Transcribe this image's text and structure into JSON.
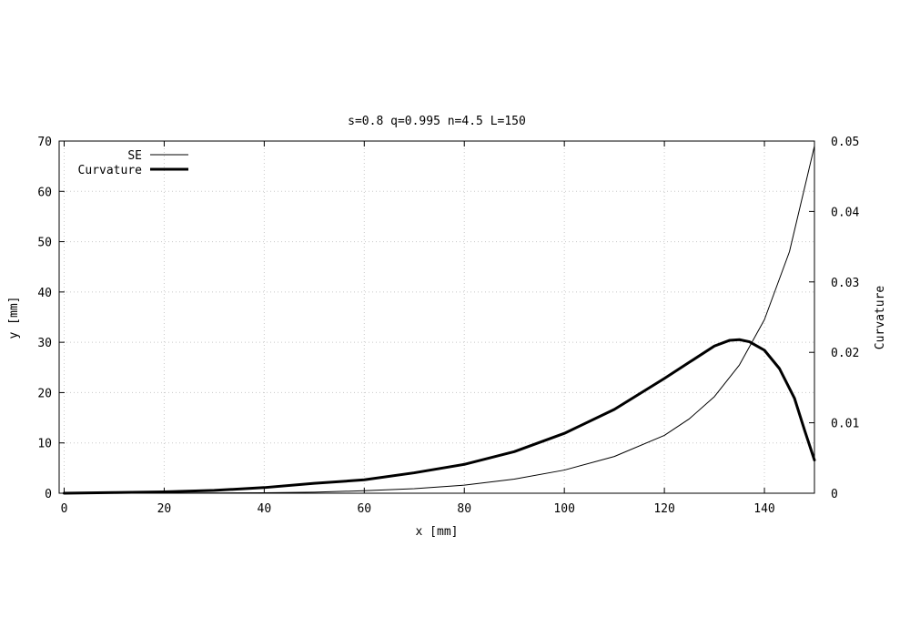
{
  "chart_data": {
    "type": "line",
    "title": "s=0.8 q=0.995 n=4.5 L=150",
    "xlabel": "x [mm]",
    "ylabel": "y [mm]",
    "y2label": "Curvature",
    "xlim": [
      -1,
      150
    ],
    "ylim": [
      0,
      70
    ],
    "y2lim": [
      0,
      0.05
    ],
    "xticks": [
      0,
      20,
      40,
      60,
      80,
      100,
      120,
      140
    ],
    "yticks": [
      0,
      10,
      20,
      30,
      40,
      50,
      60,
      70
    ],
    "y2ticks": [
      0,
      0.01,
      0.02,
      0.03,
      0.04,
      0.05
    ],
    "xtick_labels": [
      "0",
      "20",
      "40",
      "60",
      "80",
      "100",
      "120",
      "140"
    ],
    "ytick_labels": [
      "0",
      "10",
      "20",
      "30",
      "40",
      "50",
      "60",
      "70"
    ],
    "y2tick_labels": [
      "0",
      "0.01",
      "0.02",
      "0.03",
      "0.04",
      "0.05"
    ],
    "grid": true,
    "legend_position": "top-left",
    "series": [
      {
        "name": "SE",
        "axis": "y",
        "style": "thin",
        "x": [
          0,
          20,
          40,
          50,
          60,
          70,
          80,
          90,
          100,
          110,
          120,
          125,
          130,
          135,
          140,
          145,
          150
        ],
        "y": [
          0,
          0.02,
          0.1,
          0.2,
          0.5,
          0.9,
          1.6,
          2.8,
          4.6,
          7.3,
          11.5,
          14.8,
          19.2,
          25.5,
          34.5,
          48.0,
          69.0
        ]
      },
      {
        "name": "Curvature",
        "axis": "y2",
        "style": "thick",
        "x": [
          0,
          10,
          20,
          30,
          40,
          50,
          60,
          70,
          80,
          90,
          100,
          110,
          120,
          125,
          130,
          133,
          135,
          137,
          140,
          143,
          146,
          148,
          150
        ],
        "y": [
          0,
          0.0001,
          0.0002,
          0.0004,
          0.0008,
          0.0014,
          0.0019,
          0.0029,
          0.0041,
          0.0059,
          0.0085,
          0.0119,
          0.0163,
          0.0186,
          0.0209,
          0.0217,
          0.0218,
          0.0215,
          0.0203,
          0.0177,
          0.0135,
          0.009,
          0.0047
        ]
      }
    ]
  }
}
